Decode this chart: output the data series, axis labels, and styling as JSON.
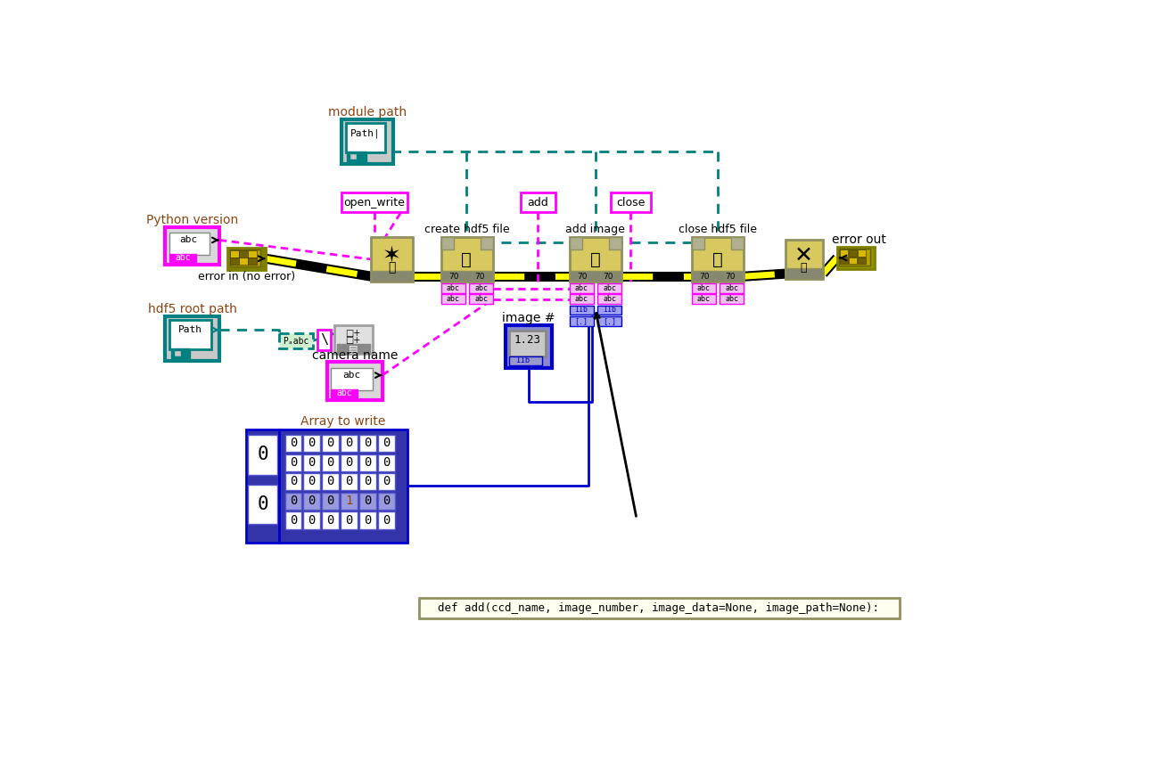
{
  "bg": "#ffffff",
  "def_text": "def add(ccd_name, image_number, image_data=None, image_path=None):",
  "arr_data": [
    [
      0,
      0,
      0,
      0,
      0,
      0
    ],
    [
      0,
      0,
      0,
      0,
      0,
      0
    ],
    [
      0,
      0,
      0,
      0,
      0,
      0
    ],
    [
      0,
      0,
      0,
      1,
      0,
      0
    ],
    [
      0,
      0,
      0,
      0,
      0,
      0
    ]
  ],
  "labels": {
    "module_path": "module path",
    "python_version": "Python version",
    "error_in": "error in (no error)",
    "hdf5_root": "hdf5 root path",
    "camera_name": "camera name",
    "array": "Array to write",
    "image_num": "image #",
    "open_write": "open_write",
    "add_lbl": "add",
    "close_lbl": "close",
    "create_hdf5": "create hdf5 file",
    "add_image": "add image",
    "close_hdf5": "close hdf5 file",
    "error_out": "error out"
  },
  "colors": {
    "teal": "#008080",
    "magenta": "#ff00ff",
    "olive": "#808000",
    "blue": "#0000cc",
    "tan": "#e8d870",
    "brown": "#8b4513",
    "gray": "#c0c0c0",
    "light_yellow": "#fffff0",
    "white": "#ffffff",
    "black": "#000000",
    "yellow": "#ffff00",
    "node_tan": "#d4c87a",
    "node_border": "#909060",
    "port_gray": "#b0b090"
  }
}
